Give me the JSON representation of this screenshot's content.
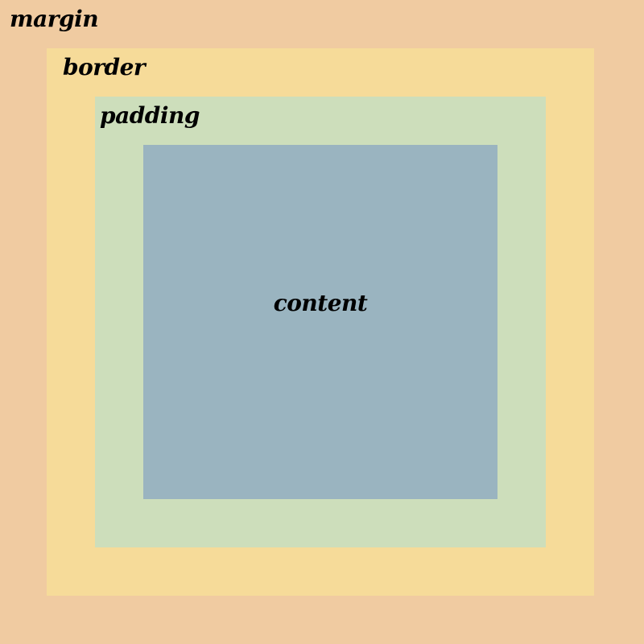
{
  "labels": {
    "margin": "margin",
    "border": "border",
    "padding": "padding",
    "content": "content"
  },
  "colors": {
    "margin": "#f0cba1",
    "border": "#f6db99",
    "padding": "#cddebb",
    "content": "#9ab4c0"
  }
}
